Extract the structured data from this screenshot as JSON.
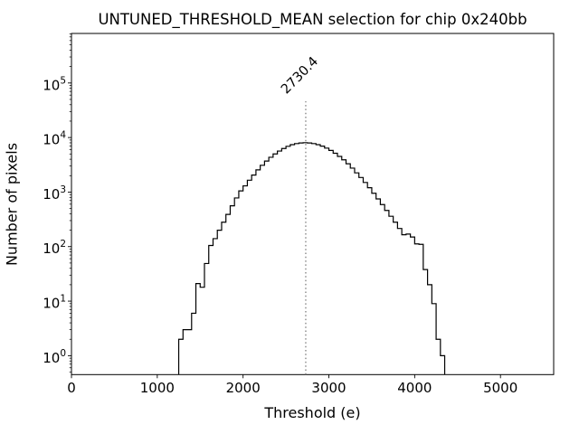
{
  "figure": {
    "kind": "matplotlib-figure",
    "background_color": "#ffffff"
  },
  "chart_data": {
    "type": "histogram-step",
    "title": "UNTUNED_THRESHOLD_MEAN selection for chip 0x240bb",
    "xlabel": "Threshold (e)",
    "ylabel": "Number of pixels",
    "yscale": "log",
    "grid": false,
    "legend": null,
    "xlim": [
      0,
      5620
    ],
    "ylim": [
      0.45,
      810000
    ],
    "x_ticks": [
      0,
      1000,
      2000,
      3000,
      4000,
      5000
    ],
    "y_tick_exponents": [
      0,
      1,
      2,
      3,
      4,
      5
    ],
    "line_color": "#000000",
    "bin_start": 1250,
    "bin_width": 50,
    "counts": [
      2,
      3,
      3,
      6,
      21,
      18,
      49,
      105,
      140,
      200,
      280,
      390,
      560,
      780,
      1050,
      1300,
      1650,
      2050,
      2550,
      3100,
      3700,
      4350,
      5000,
      5650,
      6300,
      6900,
      7400,
      7750,
      7950,
      8050,
      7950,
      7750,
      7400,
      6950,
      6400,
      5800,
      5150,
      4500,
      3900,
      3300,
      2750,
      2250,
      1850,
      1500,
      1200,
      950,
      750,
      590,
      460,
      360,
      280,
      215,
      165,
      170,
      150,
      112,
      110,
      38,
      20,
      9,
      2,
      1
    ],
    "vline": {
      "x": 2730.4,
      "label": "2730.4",
      "color": "#7f7f7f",
      "style": "dotted",
      "label_rotation_deg": -45
    }
  }
}
